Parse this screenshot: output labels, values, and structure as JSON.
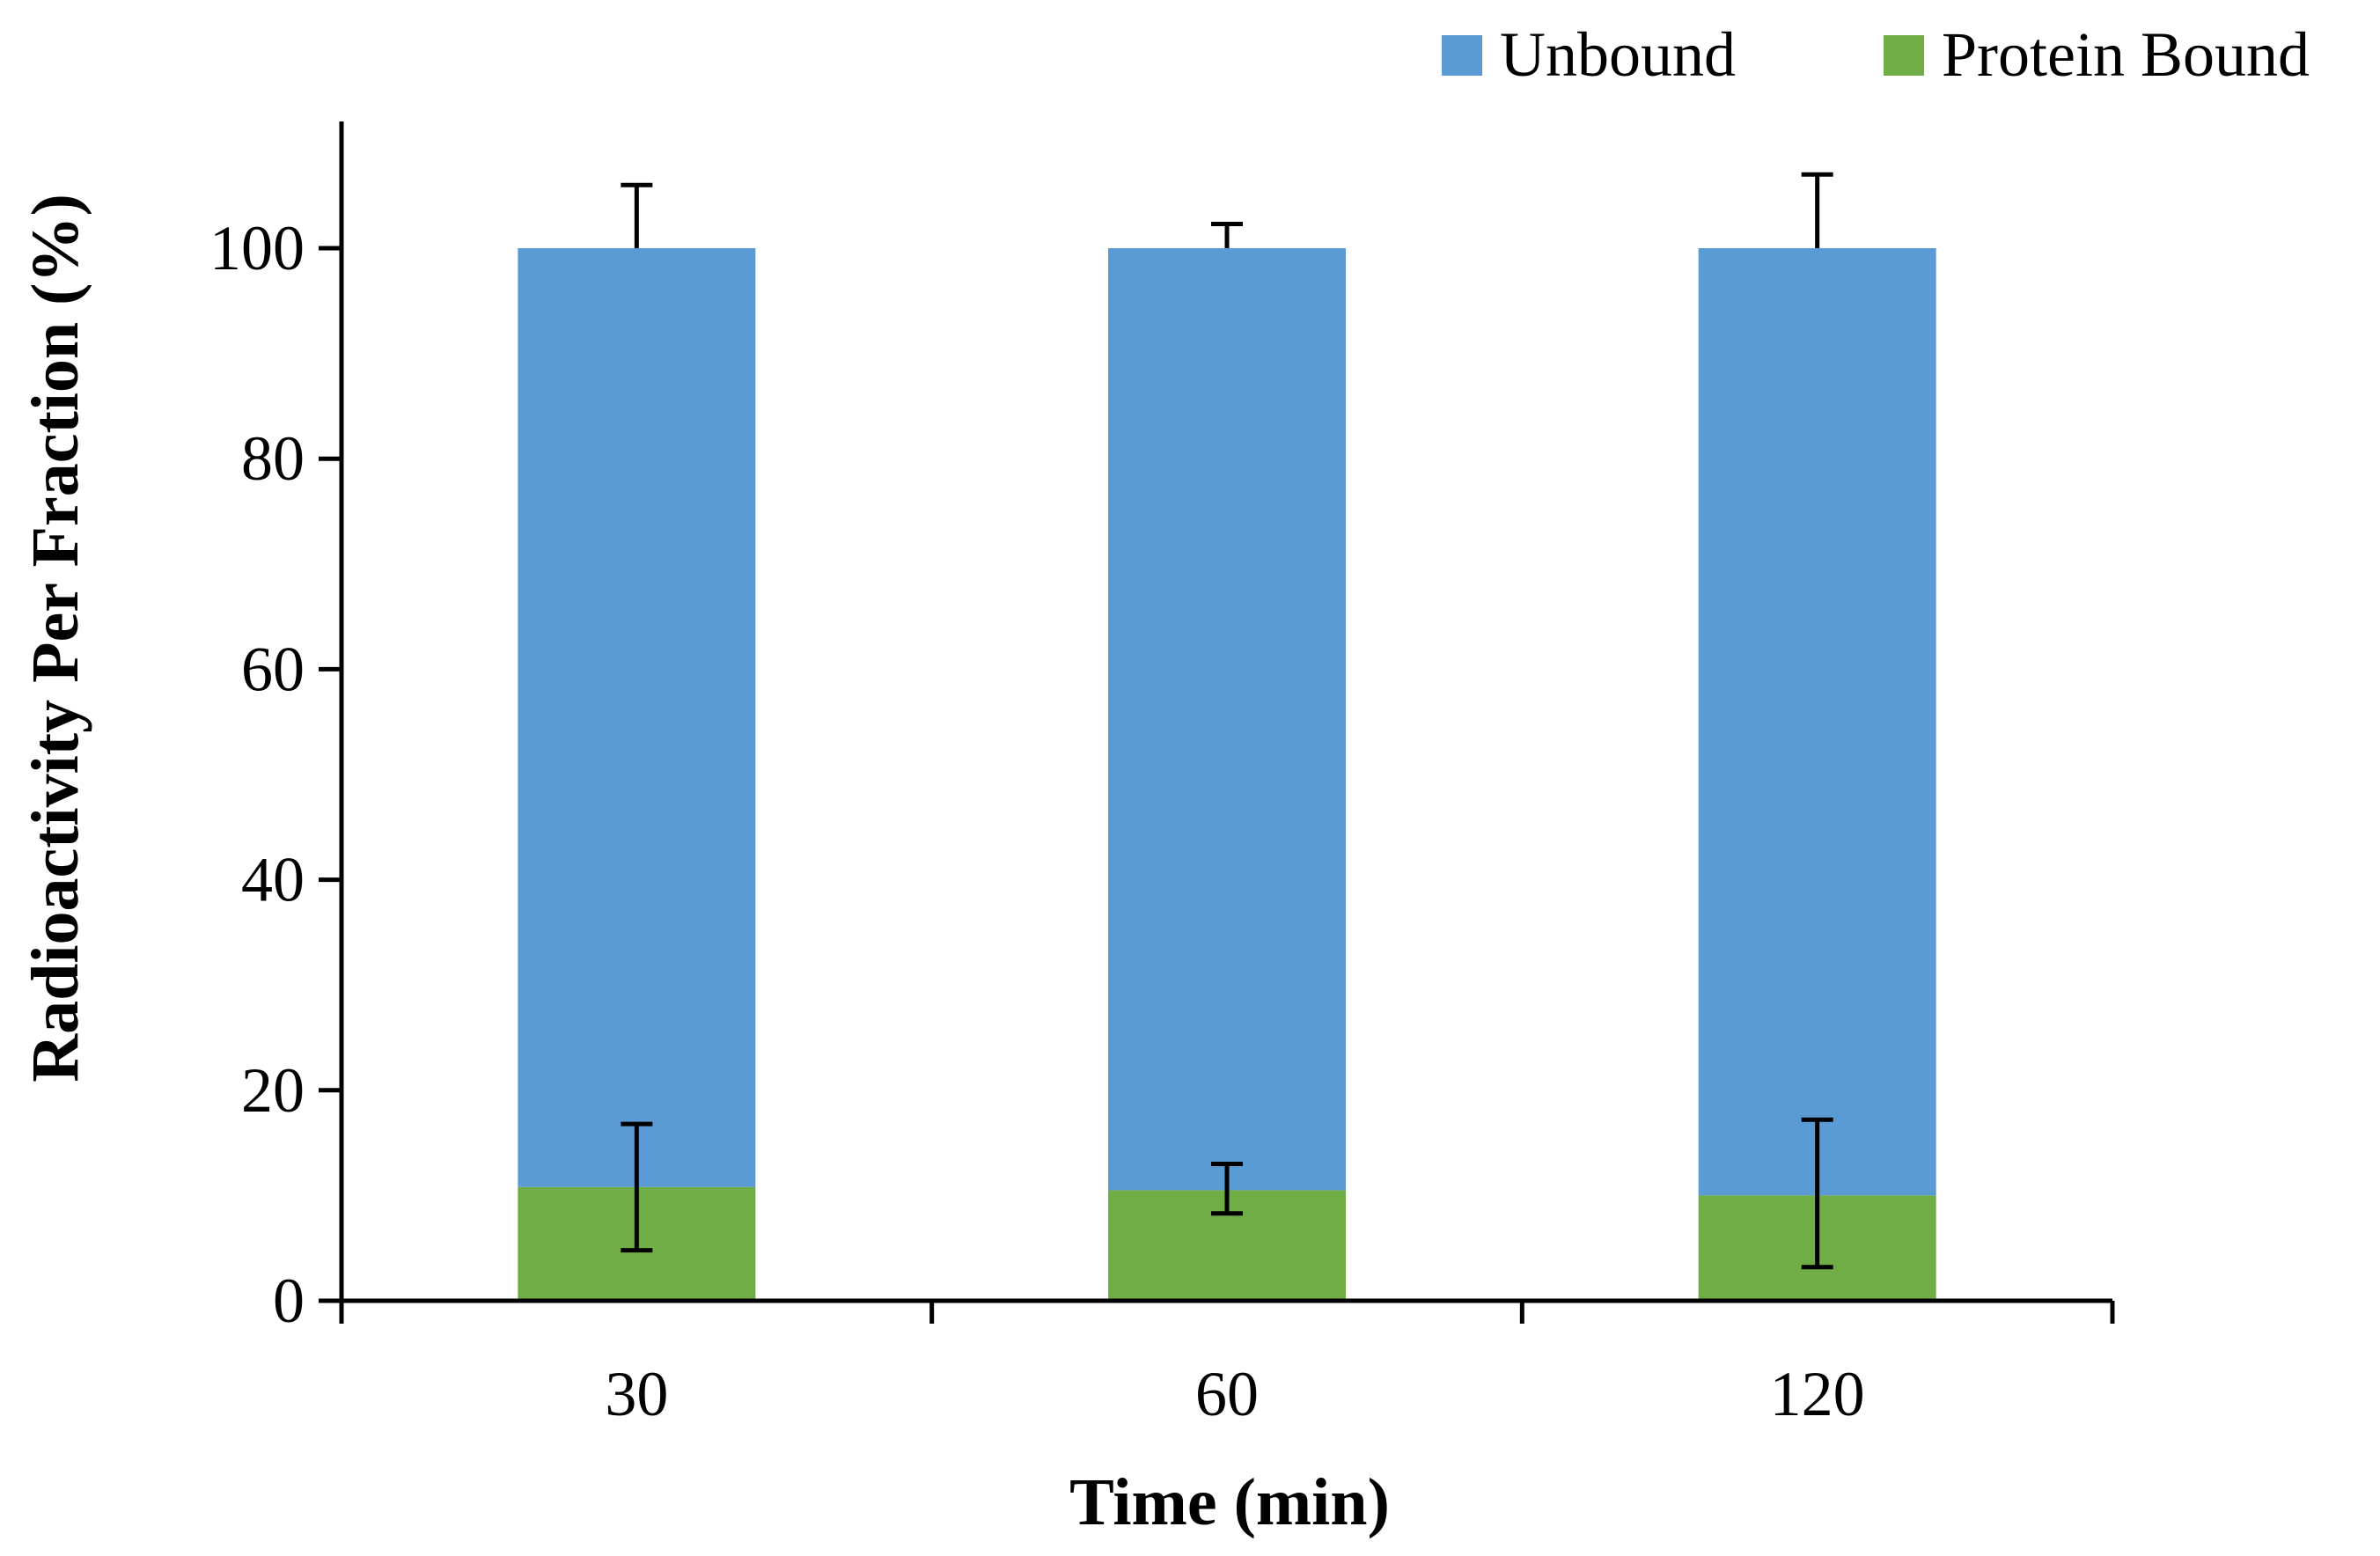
{
  "chart_data": {
    "type": "bar",
    "stacked": true,
    "categories": [
      "30",
      "60",
      "120"
    ],
    "series": [
      {
        "name": "Protein Bound",
        "color": "#70AD47",
        "values": [
          10.8,
          10.5,
          10.0
        ],
        "error_low": [
          4.8,
          8.3,
          3.2
        ],
        "error_high": [
          16.8,
          13.0,
          17.2
        ]
      },
      {
        "name": "Unbound",
        "color": "#5B9BD5",
        "values": [
          89.2,
          89.5,
          90.0
        ],
        "error_high_total": [
          106.0,
          102.3,
          107.0
        ]
      }
    ],
    "legend": {
      "position": "top-right",
      "order": [
        "Unbound",
        "Protein Bound"
      ]
    },
    "xlabel": "Time (min)",
    "ylabel": "Radioactivity Per Fraction (%)",
    "ylim": [
      0,
      112
    ],
    "yticks": [
      "0",
      "20",
      "40",
      "60",
      "80",
      "100"
    ],
    "grid": false
  }
}
